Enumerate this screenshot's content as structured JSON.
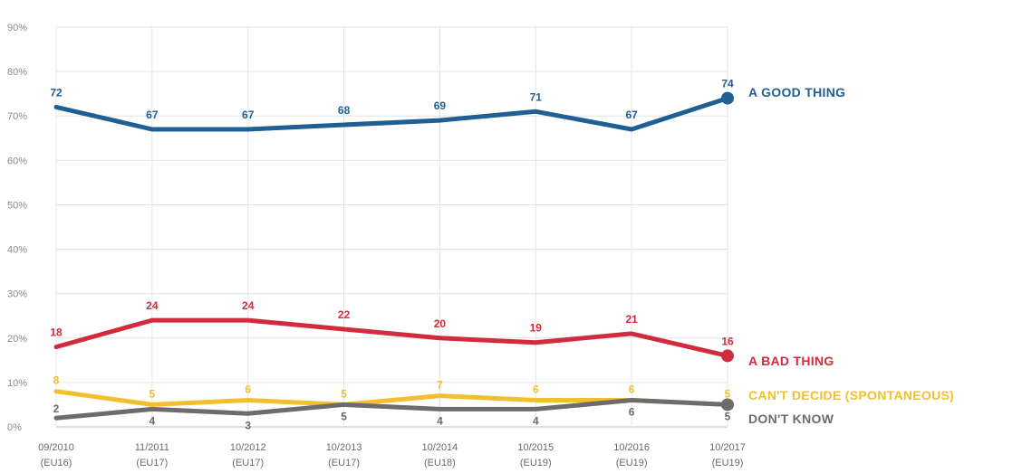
{
  "chart_data": {
    "type": "line",
    "categories": [
      [
        "09/2010",
        "(EU16)"
      ],
      [
        "11/2011",
        "(EU17)"
      ],
      [
        "10/2012",
        "(EU17)"
      ],
      [
        "10/2013",
        "(EU17)"
      ],
      [
        "10/2014",
        "(EU18)"
      ],
      [
        "10/2015",
        "(EU19)"
      ],
      [
        "10/2016",
        "(EU19)"
      ],
      [
        "10/2017",
        "(EU19)"
      ]
    ],
    "y_ticks": [
      "0%",
      "10%",
      "20%",
      "30%",
      "40%",
      "50%",
      "60%",
      "70%",
      "80%",
      "90%"
    ],
    "ylim": [
      0,
      90
    ],
    "grid": true,
    "series": [
      {
        "name": "A GOOD THING",
        "color": "#1f5f94",
        "values": [
          72,
          67,
          67,
          68,
          69,
          71,
          67,
          74
        ],
        "end_marker": true
      },
      {
        "name": "A BAD THING",
        "color": "#d22b3d",
        "values": [
          18,
          24,
          24,
          22,
          20,
          19,
          21,
          16
        ],
        "end_marker": true
      },
      {
        "name": "CAN'T DECIDE (SPONTANEOUS)",
        "color": "#f2c02e",
        "values": [
          8,
          5,
          6,
          5,
          7,
          6,
          6,
          5
        ],
        "end_marker": false
      },
      {
        "name": "DON'T KNOW",
        "color": "#6e6a6e",
        "values": [
          2,
          4,
          3,
          5,
          4,
          4,
          6,
          5
        ],
        "end_marker": true
      }
    ]
  }
}
